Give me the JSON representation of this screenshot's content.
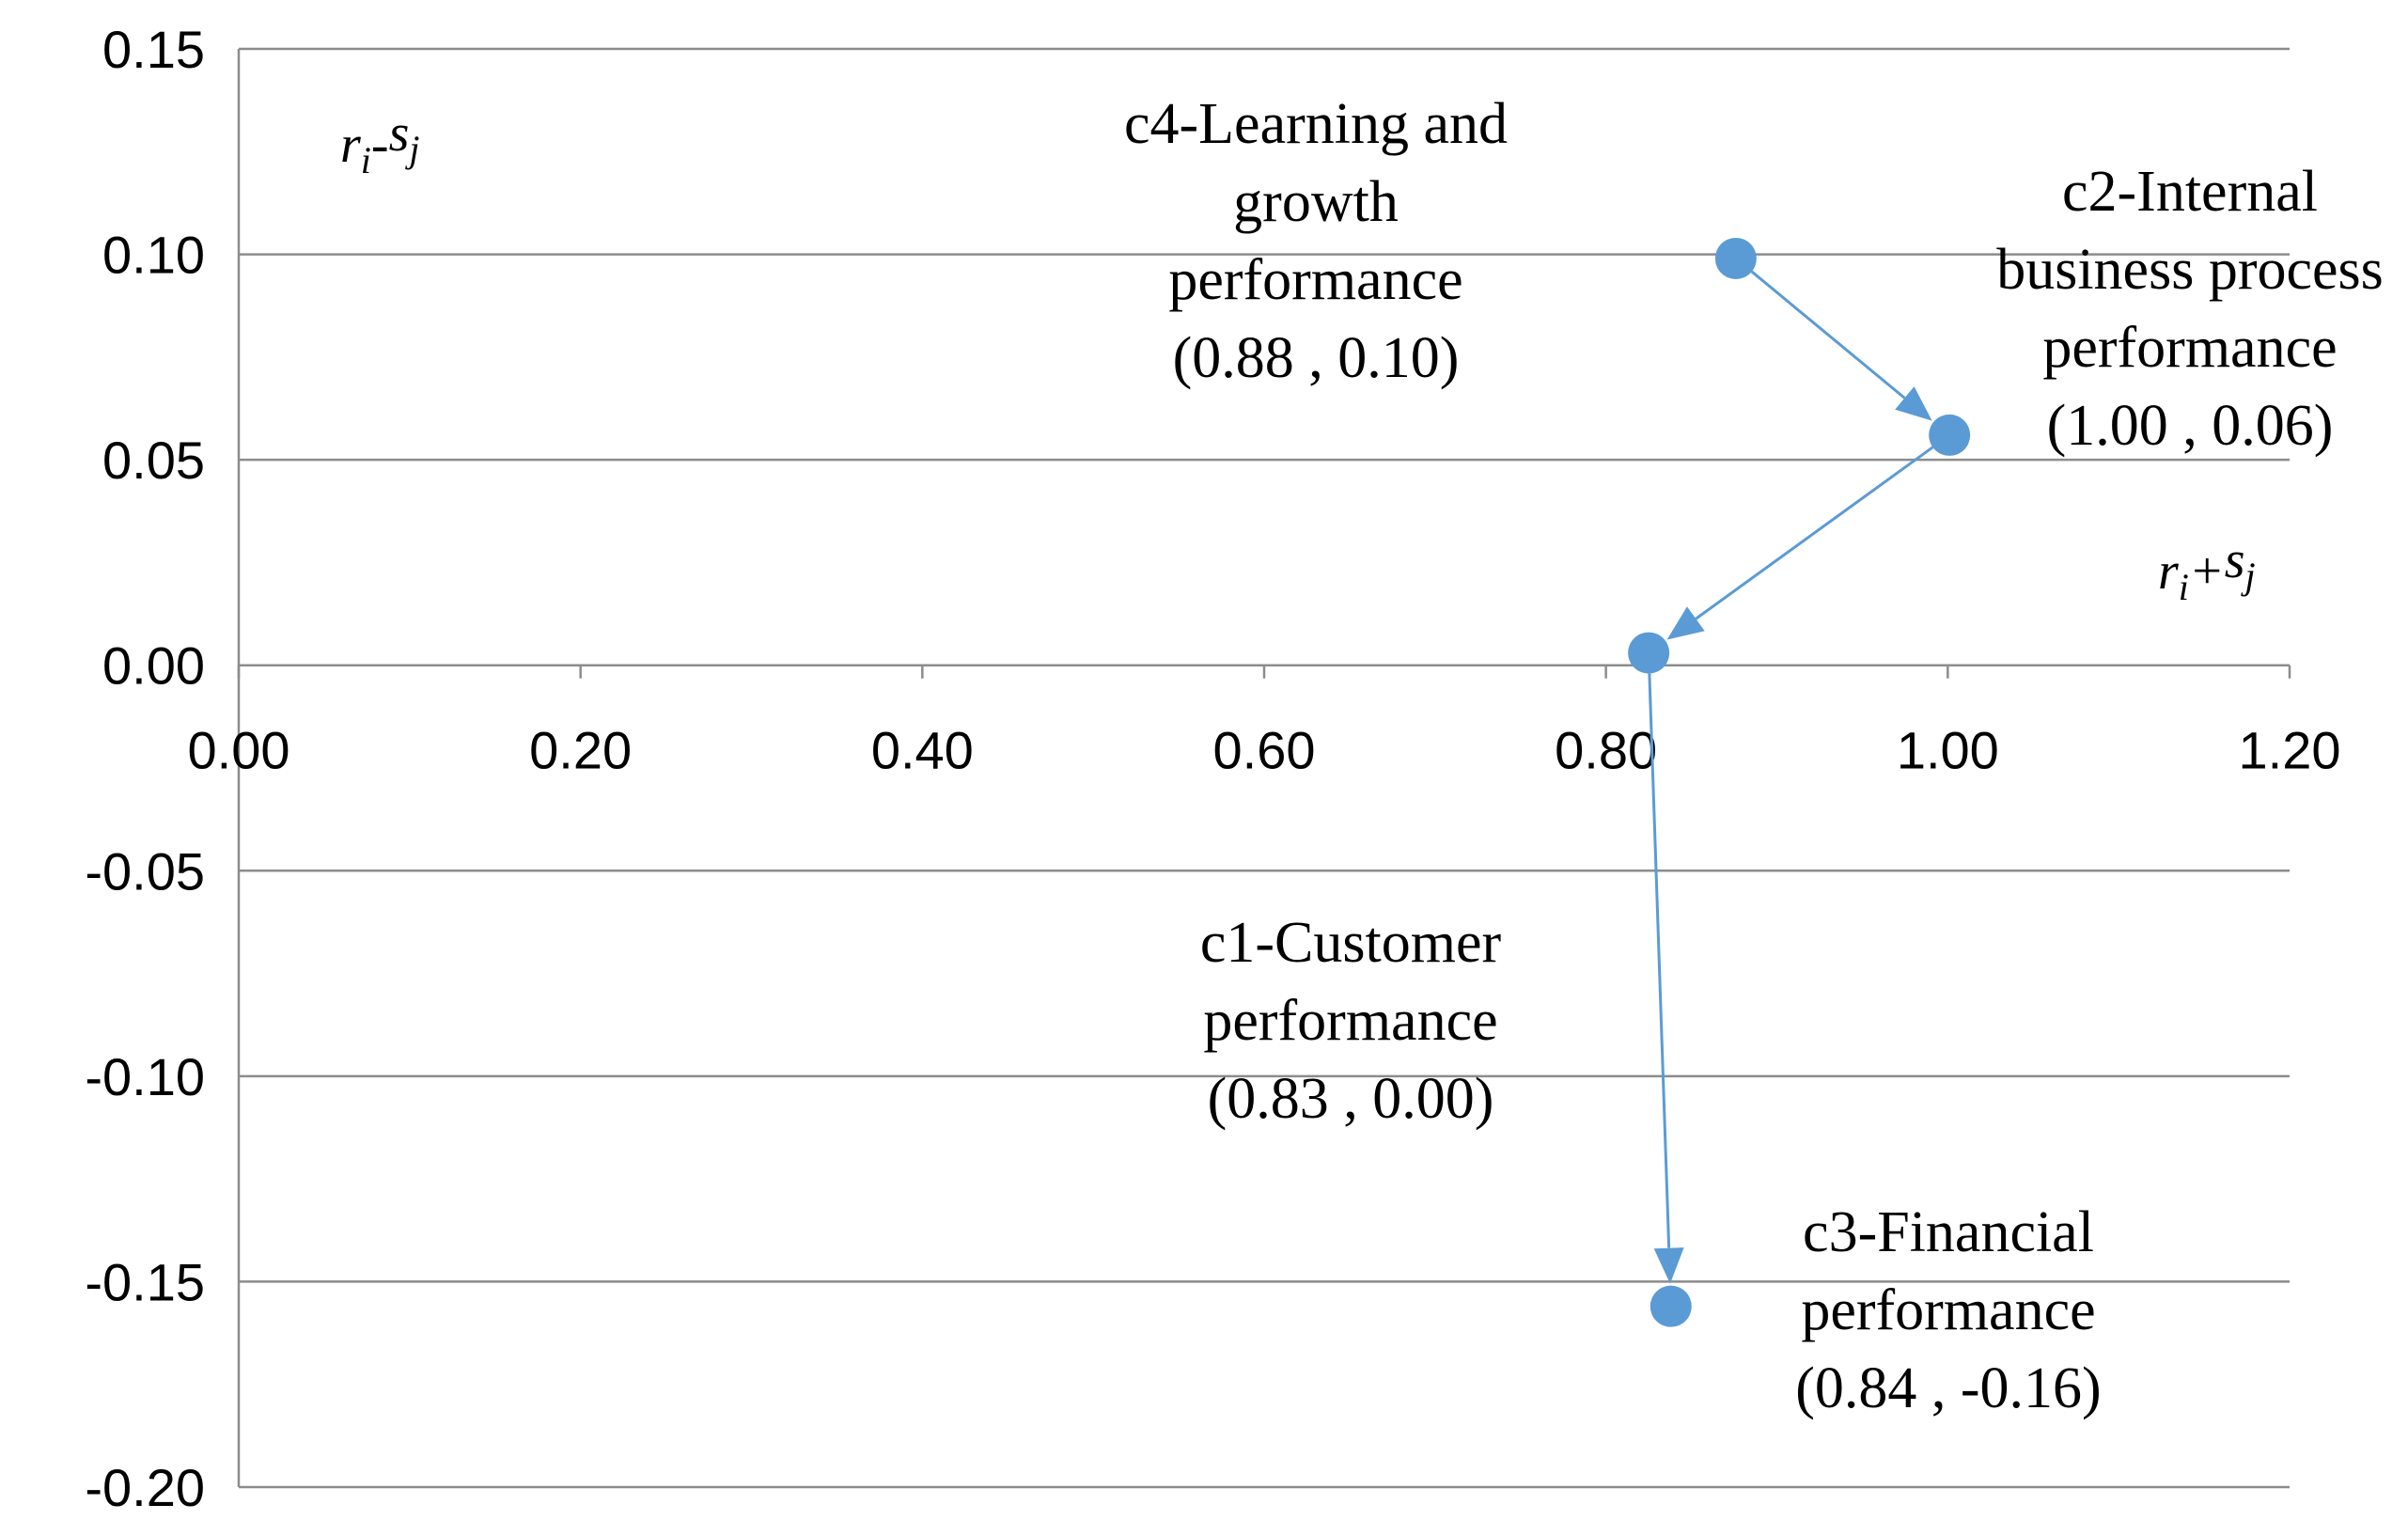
{
  "chart_data": {
    "type": "scatter",
    "title": "",
    "xlabel": "ri+sj",
    "ylabel": "ri-sj",
    "axis_names": {
      "x": {
        "main": "r",
        "sub1": "i",
        "op": "+",
        "main2": "s",
        "sub2": "j"
      },
      "y": {
        "main": "r",
        "sub1": "i",
        "op": "-",
        "main2": "s",
        "sub2": "j"
      }
    },
    "xlim": [
      0,
      1.2
    ],
    "ylim": [
      -0.2,
      0.15
    ],
    "xticks": [
      "0.00",
      "0.20",
      "0.40",
      "0.60",
      "0.80",
      "1.00",
      "1.20"
    ],
    "yticks": [
      "0.15",
      "0.10",
      "0.05",
      "0.00",
      "-0.05",
      "-0.10",
      "-0.15",
      "-0.20"
    ],
    "grid": "horizontal",
    "points": [
      {
        "id": "c4",
        "x": 0.876,
        "y": 0.099,
        "label": [
          "c4-Learning and",
          "growth",
          "performance",
          "(0.88 , 0.10)"
        ]
      },
      {
        "id": "c2",
        "x": 1.001,
        "y": 0.056,
        "label": [
          "c2-Internal",
          "business process",
          "performance",
          "(1.00 , 0.06)"
        ]
      },
      {
        "id": "c1",
        "x": 0.825,
        "y": 0.003,
        "label": [
          "c1-Customer",
          "performance",
          "(0.83 , 0.00)"
        ]
      },
      {
        "id": "c3",
        "x": 0.838,
        "y": -0.156,
        "label": [
          "c3-Financial",
          "performance",
          "(0.84 , -0.16)"
        ]
      }
    ],
    "arrows": [
      {
        "from": "c4",
        "to": "c2"
      },
      {
        "from": "c2",
        "to": "c1"
      },
      {
        "from": "c1",
        "to": "c3"
      }
    ],
    "colors": {
      "marker": "#5B9BD5",
      "arrow": "#5B9BD5",
      "grid": "#8C8C8C",
      "axis": "#8C8C8C"
    }
  }
}
